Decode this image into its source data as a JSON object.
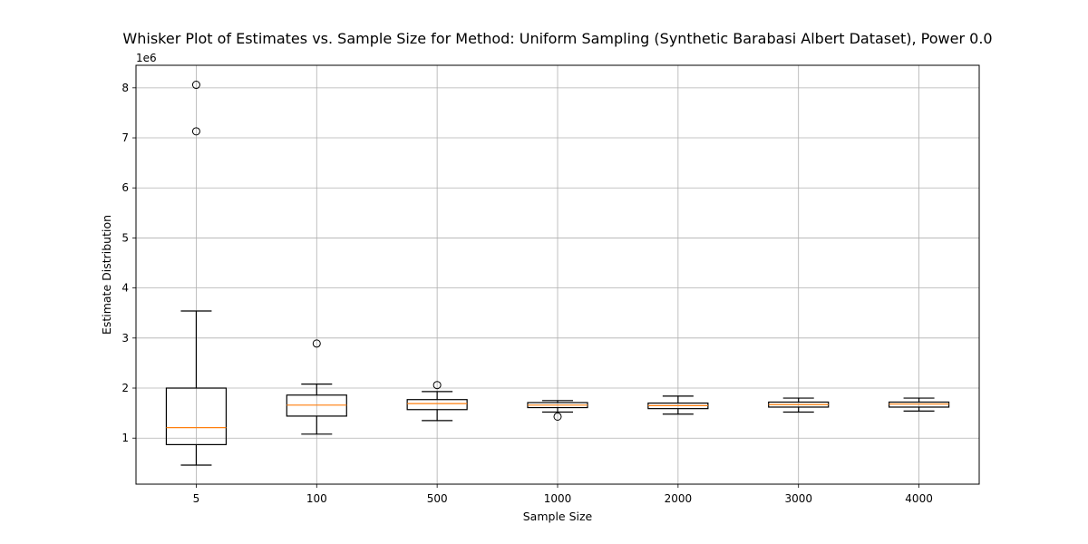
{
  "chart_data": {
    "type": "box",
    "title": "Whisker Plot of Estimates vs. Sample Size for Method: Uniform Sampling (Synthetic Barabasi Albert Dataset), Power 0.0",
    "xlabel": "Sample Size",
    "ylabel": "Estimate Distribution",
    "y_offset_label": "1e6",
    "ylim": [
      0.08,
      8.45
    ],
    "y_ticks": [
      1,
      2,
      3,
      4,
      5,
      6,
      7,
      8
    ],
    "y_tick_labels": [
      "1",
      "2",
      "3",
      "4",
      "5",
      "6",
      "7",
      "8"
    ],
    "grid": true,
    "categories": [
      "5",
      "100",
      "500",
      "1000",
      "2000",
      "3000",
      "4000"
    ],
    "boxes": [
      {
        "whisker_low": 0.46,
        "q1": 0.87,
        "median": 1.21,
        "q3": 2.0,
        "whisker_high": 3.54,
        "fliers": [
          7.13,
          8.06
        ]
      },
      {
        "whisker_low": 1.08,
        "q1": 1.44,
        "median": 1.66,
        "q3": 1.86,
        "whisker_high": 2.08,
        "fliers": [
          2.89
        ]
      },
      {
        "whisker_low": 1.35,
        "q1": 1.57,
        "median": 1.69,
        "q3": 1.77,
        "whisker_high": 1.93,
        "fliers": [
          2.06
        ]
      },
      {
        "whisker_low": 1.52,
        "q1": 1.61,
        "median": 1.66,
        "q3": 1.71,
        "whisker_high": 1.75,
        "fliers": [
          1.43
        ]
      },
      {
        "whisker_low": 1.48,
        "q1": 1.59,
        "median": 1.65,
        "q3": 1.7,
        "whisker_high": 1.84,
        "fliers": []
      },
      {
        "whisker_low": 1.52,
        "q1": 1.62,
        "median": 1.67,
        "q3": 1.72,
        "whisker_high": 1.8,
        "fliers": []
      },
      {
        "whisker_low": 1.54,
        "q1": 1.62,
        "median": 1.68,
        "q3": 1.72,
        "whisker_high": 1.8,
        "fliers": []
      }
    ],
    "colors": {
      "box": "#000000",
      "median": "#ff7f0e",
      "grid": "#b0b0b0"
    }
  }
}
